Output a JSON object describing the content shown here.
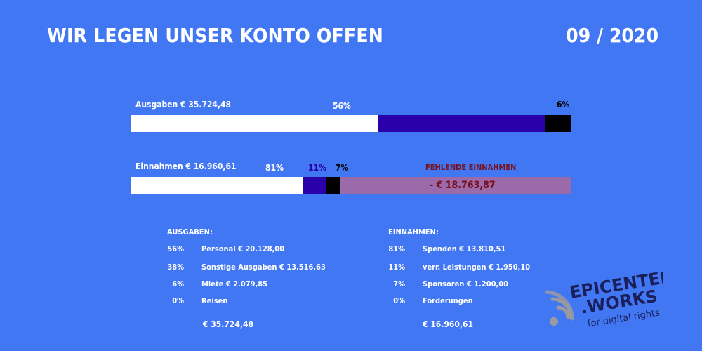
{
  "header": {
    "title": "WIR LEGEN UNSER KONTO OFFEN",
    "date": "09 / 2020"
  },
  "colors": {
    "background": "#4277f4",
    "white": "#ffffff",
    "navy": "#2a00aa",
    "black": "#000000",
    "missing": "#9a6aaa",
    "missing_text": "#7a0f1a"
  },
  "chart_data": [
    {
      "type": "bar",
      "orientation": "horizontal-stacked",
      "label": "Ausgaben € 35.724,48",
      "total": 35724.48,
      "segments": [
        {
          "value": 56,
          "color": "#ffffff",
          "label": "56%"
        },
        {
          "value": 38,
          "color": "#2a00aa",
          "label": ""
        },
        {
          "value": 6,
          "color": "#000000",
          "label": "6%"
        }
      ]
    },
    {
      "type": "bar",
      "orientation": "horizontal-stacked",
      "label": "Einnahmen € 16.960,61",
      "total": 16960.61,
      "segments": [
        {
          "value": 81,
          "color": "#ffffff",
          "label": "81%"
        },
        {
          "value": 11,
          "color": "#2a00aa",
          "label": "11%"
        },
        {
          "value": 7,
          "color": "#000000",
          "label": "7%"
        }
      ],
      "missing": {
        "label": "FEHLENDE EINNAHMEN",
        "amount_label": "-  € 18.763,87",
        "value": 18763.87
      }
    }
  ],
  "ausgaben": {
    "heading": "AUSGABEN:",
    "items": [
      {
        "pct": "56%",
        "label": "Personal € 20.128,00"
      },
      {
        "pct": "38%",
        "label": "Sonstige Ausgaben € 13.516,63"
      },
      {
        "pct": "6%",
        "label": "Miete € 2.079,85"
      },
      {
        "pct": "0%",
        "label": "Reisen"
      }
    ],
    "total": "€ 35.724,48"
  },
  "einnahmen": {
    "heading": "EINNAHMEN:",
    "items": [
      {
        "pct": "81%",
        "label": "Spenden € 13.810,51"
      },
      {
        "pct": "11%",
        "label": "verr. Leistungen € 1.950,10"
      },
      {
        "pct": "7%",
        "label": "Sponsoren € 1.200,00"
      },
      {
        "pct": "0%",
        "label": "Förderungen"
      }
    ],
    "total": "€ 16.960,61"
  },
  "logo": {
    "line1": "EPICENTER",
    "line2": ".WORKS",
    "tagline": "for digital rights"
  }
}
